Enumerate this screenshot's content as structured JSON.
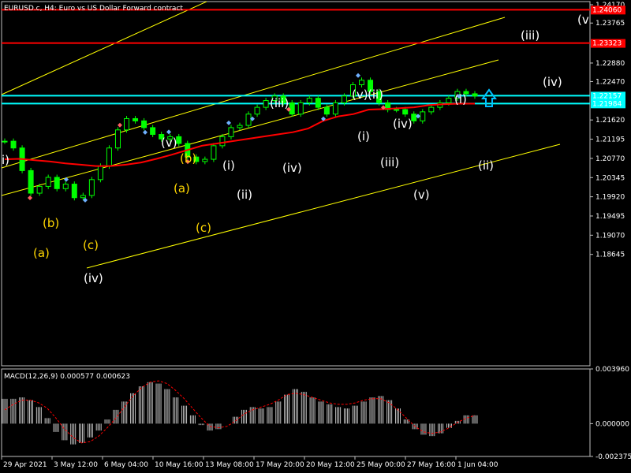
{
  "chart_data": [
    {
      "type": "candlestick",
      "title": "EURUSD.c, H4:  Euro vs US Dollar Forward contract",
      "ylim": [
        1.1618,
        1.2424
      ],
      "price_ticks": [
        "1.24170",
        "1.23765",
        "1.22880",
        "1.22470",
        "1.21620",
        "1.21195",
        "1.20770",
        "1.20345",
        "1.19920",
        "1.19495",
        "1.19070",
        "1.18645"
      ],
      "date_ticks": [
        "29 Apr 2021",
        "3 May 12:00",
        "6 May 04:00",
        "10 May 16:00",
        "13 May 08:00",
        "17 May 20:00",
        "20 May 12:00",
        "25 May 00:00",
        "27 May 16:00",
        "1 Jun 04:00"
      ],
      "close_path": [
        1.2115,
        1.21,
        1.205,
        1.2,
        1.2015,
        1.2035,
        1.201,
        1.202,
        1.199,
        1.1995,
        1.203,
        1.206,
        1.21,
        1.214,
        1.2165,
        1.216,
        1.2145,
        1.213,
        1.212,
        1.2125,
        1.211,
        1.208,
        1.207,
        1.2075,
        1.2105,
        1.2125,
        1.2145,
        1.215,
        1.2175,
        1.219,
        1.2205,
        1.2215,
        1.22,
        1.2175,
        1.22,
        1.221,
        1.219,
        1.2175,
        1.22,
        1.2215,
        1.224,
        1.225,
        1.2225,
        1.22,
        1.2185,
        1.2185,
        1.2175,
        1.216,
        1.218,
        1.219,
        1.22,
        1.221,
        1.2225,
        1.222,
        1.2215
      ],
      "moving_average": [
        1.2075,
        1.2076,
        1.2073,
        1.207,
        1.2066,
        1.2063,
        1.206,
        1.206,
        1.2063,
        1.2068,
        1.2076,
        1.2085,
        1.2095,
        1.2105,
        1.211,
        1.2115,
        1.212,
        1.2125,
        1.213,
        1.2135,
        1.2143,
        1.216,
        1.217,
        1.2175,
        1.2185,
        1.2186,
        1.2188,
        1.219,
        1.2195,
        1.2197,
        1.2198,
        1.2198
      ],
      "levels": [
        {
          "price": 1.2406,
          "label": "1.24060",
          "color": "#ff0000",
          "style": "solid"
        },
        {
          "price": 1.23323,
          "label": "1.23323",
          "color": "#ff0000",
          "style": "solid"
        },
        {
          "price": 1.22157,
          "label": "1.22157",
          "color": "#00ffff",
          "style": "solid"
        },
        {
          "price": 1.21984,
          "label": "1.21984",
          "color": "#00ffff",
          "style": "solid"
        }
      ],
      "wave_labels": [
        {
          "text": "i)",
          "color": "#ffffff"
        },
        {
          "text": "(a)",
          "color": "#ffd700"
        },
        {
          "text": "(b)",
          "color": "#ffd700"
        },
        {
          "text": "(c)",
          "color": "#ffd700"
        },
        {
          "text": "(iv)",
          "color": "#ffffff"
        },
        {
          "text": "(v)",
          "color": "#ffffff"
        },
        {
          "text": "(a)",
          "color": "#ffd700"
        },
        {
          "text": "(b)",
          "color": "#ffd700"
        },
        {
          "text": "(c)",
          "color": "#ffd700"
        },
        {
          "text": "(i)",
          "color": "#ffffff"
        },
        {
          "text": "(ii)",
          "color": "#ffffff"
        },
        {
          "text": "(iii)",
          "color": "#ffffff"
        },
        {
          "text": "(iv)",
          "color": "#ffffff"
        },
        {
          "text": "(v)",
          "color": "#ffffff"
        },
        {
          "text": "(ii)",
          "color": "#ffffff"
        },
        {
          "text": "(i)",
          "color": "#ffffff"
        },
        {
          "text": "(iii)",
          "color": "#ffffff"
        },
        {
          "text": "(iv)",
          "color": "#ffffff"
        },
        {
          "text": "(v)",
          "color": "#ffffff"
        },
        {
          "text": "(i)",
          "color": "#ffffff"
        },
        {
          "text": "(ii)",
          "color": "#ffffff"
        },
        {
          "text": "(iii)",
          "color": "#ffffff"
        },
        {
          "text": "(iv)",
          "color": "#ffffff"
        },
        {
          "text": "(v",
          "color": "#ffffff"
        }
      ],
      "arrow_icon": "up-arrow-icon",
      "colors": {
        "up": "#00ff00",
        "down": "#00ff00",
        "ma": "#ff0000",
        "channel": "#ffff00",
        "grid": "#c0c0c0"
      }
    },
    {
      "type": "bar",
      "title": "MACD(12,26,9) 0.000577 0.000623",
      "ylim": [
        -0.002375,
        0.00396
      ],
      "tick_labels": [
        "0.003960",
        "0.000000",
        "-0.002375"
      ],
      "histogram": [
        0.0018,
        0.0018,
        0.0019,
        0.0017,
        0.0012,
        0.0004,
        -0.0006,
        -0.0012,
        -0.0015,
        -0.0014,
        -0.001,
        -0.0005,
        0.0003,
        0.001,
        0.0016,
        0.0022,
        0.0027,
        0.003,
        0.0029,
        0.0025,
        0.0019,
        0.0013,
        0.0006,
        -0.0001,
        -0.0005,
        -0.0004,
        0.0,
        0.0005,
        0.001,
        0.0012,
        0.0011,
        0.0012,
        0.0016,
        0.0021,
        0.0025,
        0.0023,
        0.0019,
        0.0016,
        0.0014,
        0.0012,
        0.0011,
        0.0013,
        0.0016,
        0.0019,
        0.002,
        0.0017,
        0.0011,
        0.0003,
        -0.0004,
        -0.0008,
        -0.0009,
        -0.0007,
        -0.0003,
        0.0002,
        0.0006,
        0.0006
      ],
      "signal": [
        0.001,
        0.0014,
        0.0017,
        0.0017,
        0.0015,
        0.0011,
        0.0004,
        -0.0004,
        -0.001,
        -0.0014,
        -0.0013,
        -0.0009,
        -0.0003,
        0.0004,
        0.0012,
        0.002,
        0.0026,
        0.003,
        0.0031,
        0.0029,
        0.0024,
        0.0018,
        0.0011,
        0.0004,
        -0.0002,
        -0.0003,
        -0.0002,
        0.0002,
        0.0007,
        0.001,
        0.0012,
        0.0014,
        0.0017,
        0.0021,
        0.0022,
        0.0021,
        0.0019,
        0.0017,
        0.0015,
        0.0014,
        0.0014,
        0.0015,
        0.0017,
        0.0018,
        0.0018,
        0.0015,
        0.001,
        0.0004,
        -0.0002,
        -0.0006,
        -0.0007,
        -0.0006,
        -0.0003,
        0.0001,
        0.0004,
        0.0006
      ],
      "colors": {
        "histogram": "#c0c0c0",
        "signal": "#ff0000"
      }
    }
  ]
}
